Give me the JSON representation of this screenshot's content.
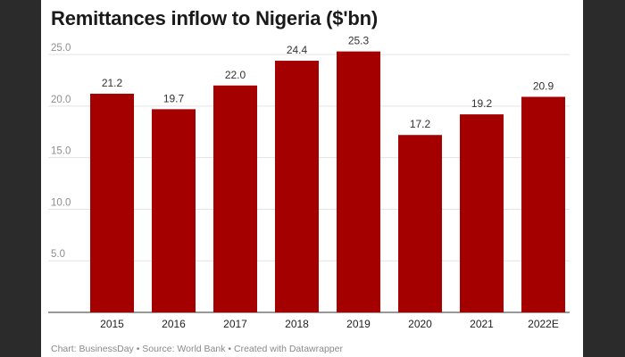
{
  "chart_data": {
    "type": "bar",
    "title": "Remittances inflow to Nigeria ($'bn)",
    "categories": [
      "2015",
      "2016",
      "2017",
      "2018",
      "2019",
      "2020",
      "2021",
      "2022E"
    ],
    "values": [
      21.2,
      19.7,
      22.0,
      24.4,
      25.3,
      17.2,
      19.2,
      20.9
    ],
    "value_labels": [
      "21.2",
      "19.7",
      "22.0",
      "24.4",
      "25.3",
      "17.2",
      "19.2",
      "20.9"
    ],
    "y_ticks": [
      5.0,
      10.0,
      15.0,
      20.0,
      25.0
    ],
    "y_tick_labels": [
      "5.0",
      "10.0",
      "15.0",
      "20.0",
      "25.0"
    ],
    "ylim": [
      0,
      27
    ],
    "grid": true,
    "bar_color": "#a50000",
    "xlabel": "",
    "ylabel": ""
  },
  "footer": {
    "text": "Chart: BusinessDay • Source: World Bank • Created with Datawrapper"
  }
}
